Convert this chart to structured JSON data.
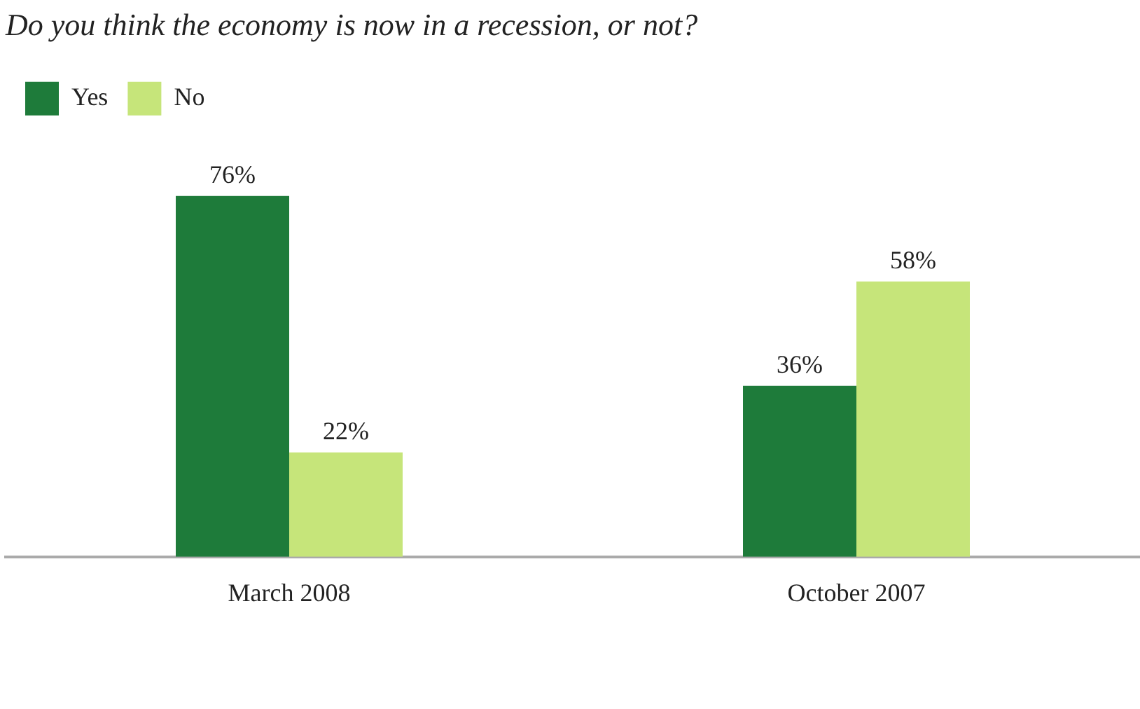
{
  "chart_data": {
    "type": "bar",
    "title": "Do you think the economy is now in a recession, or not?",
    "categories": [
      "March 2008",
      "October 2007"
    ],
    "series": [
      {
        "name": "Yes",
        "color": "#1e7b3a",
        "values": [
          76,
          36
        ],
        "value_labels": [
          "76%",
          "36%"
        ]
      },
      {
        "name": "No",
        "color": "#c6e57a",
        "values": [
          22,
          58
        ],
        "value_labels": [
          "22%",
          "58%"
        ]
      }
    ],
    "legend": "top left",
    "grid": false
  }
}
